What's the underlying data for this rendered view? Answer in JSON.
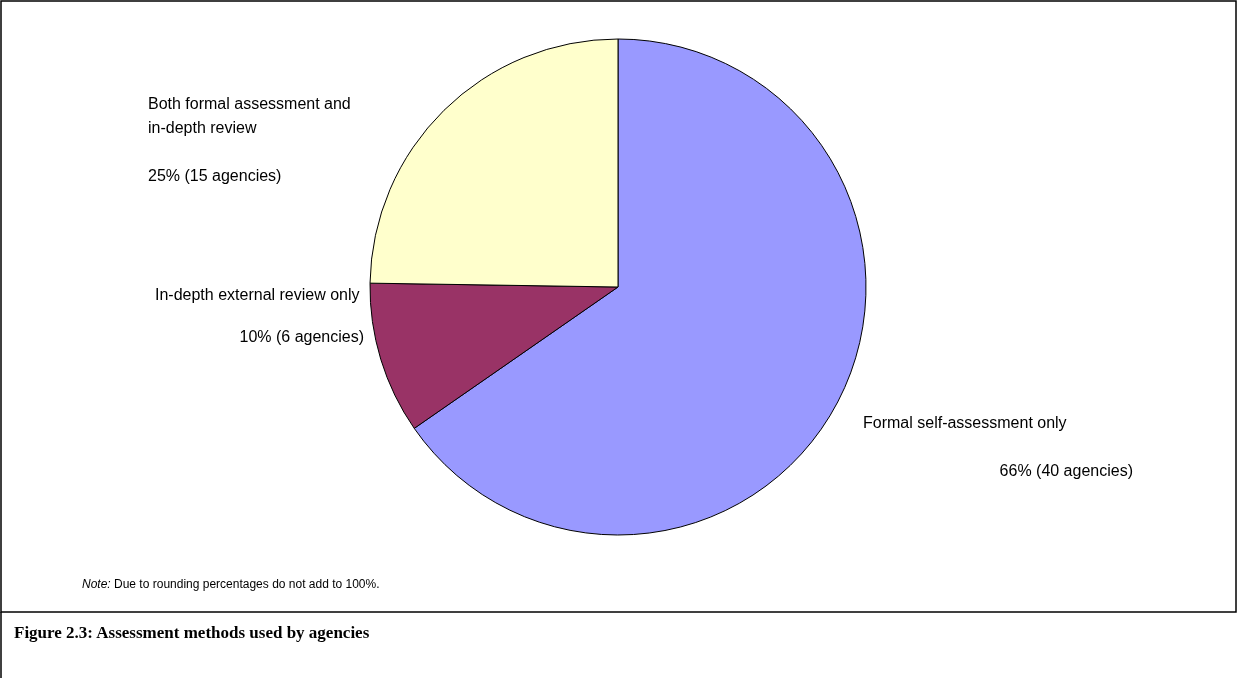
{
  "chart_data": {
    "type": "pie",
    "title": "Figure 2.3: Assessment methods used by agencies",
    "categories": [
      "Formal self-assessment only",
      "In-depth external review only",
      "Both formal assessment and in-depth review"
    ],
    "values": [
      66,
      10,
      25
    ],
    "value_labels": [
      "66% (40 agencies)",
      "10% (6 agencies)",
      "25% (15 agencies)"
    ],
    "colors": [
      "#9999ff",
      "#993366",
      "#ffffcc"
    ],
    "annotations": [
      "Note: Due to rounding percentages do not add to 100%."
    ],
    "legend": false
  }
}
